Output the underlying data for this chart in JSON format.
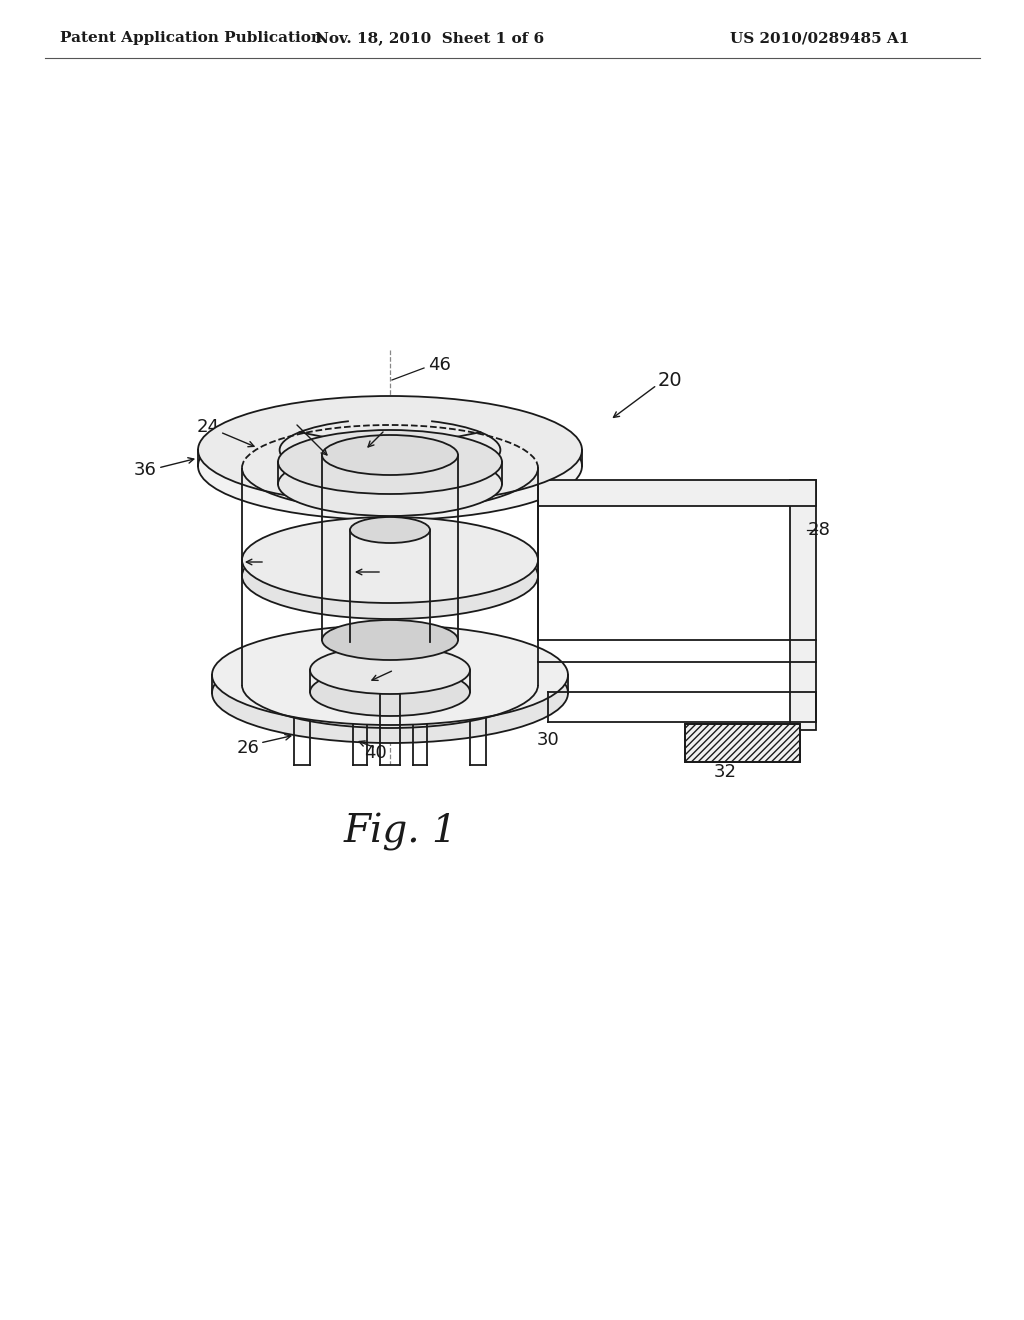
{
  "title": "Fig. 1",
  "header_left": "Patent Application Publication",
  "header_center": "Nov. 18, 2010  Sheet 1 of 6",
  "header_right": "US 2010/0289485 A1",
  "bg_color": "#ffffff",
  "line_color": "#1a1a1a",
  "hatch_color": "#333333",
  "fig_label_fontsize": 28,
  "header_fontsize": 11,
  "label_fontsize": 13
}
